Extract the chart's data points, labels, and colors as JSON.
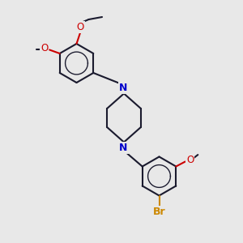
{
  "bg_color": "#e8e8e8",
  "bond_color": "#1a1a2e",
  "N_color": "#0000cc",
  "O_color": "#cc0000",
  "Br_color": "#cc8800",
  "bond_width": 1.5,
  "fig_size": [
    3.0,
    3.0
  ],
  "dpi": 100,
  "xlim": [
    0,
    10
  ],
  "ylim": [
    0,
    10
  ]
}
